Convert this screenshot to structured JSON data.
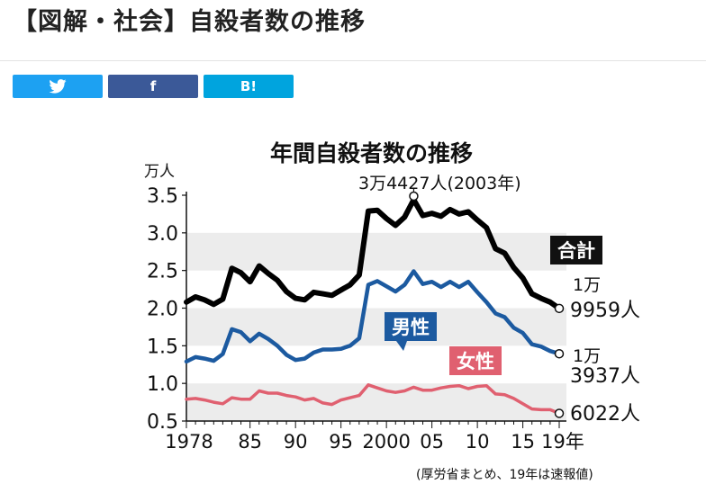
{
  "page": {
    "title": "【図解・社会】自殺者数の推移"
  },
  "share": {
    "twitter_icon": "twitter-bird-icon",
    "facebook_label": "f",
    "hatena_label": "B!",
    "colors": {
      "twitter": "#1da1f2",
      "facebook": "#3b5998",
      "hatena": "#00a4de"
    }
  },
  "chart_data": {
    "type": "line",
    "title": "年間自殺者数の推移",
    "ylabel": "万人",
    "ylim": [
      0.5,
      3.5
    ],
    "yticks": [
      0.5,
      1.0,
      1.5,
      2.0,
      2.5,
      3.0,
      3.5
    ],
    "ytick_labels": [
      "0.5",
      "1.0",
      "1.5",
      "2.0",
      "2.5",
      "3.0",
      "3.5"
    ],
    "xlim": [
      1978,
      2019
    ],
    "xticks": [
      1978,
      1985,
      1990,
      1995,
      2000,
      2005,
      2010,
      2015,
      2019
    ],
    "xtick_labels": [
      "1978",
      "85",
      "90",
      "95",
      "2000",
      "05",
      "10",
      "15",
      "19年"
    ],
    "grid": "alternating horizontal bands",
    "x": [
      1978,
      1979,
      1980,
      1981,
      1982,
      1983,
      1984,
      1985,
      1986,
      1987,
      1988,
      1989,
      1990,
      1991,
      1992,
      1993,
      1994,
      1995,
      1996,
      1997,
      1998,
      1999,
      2000,
      2001,
      2002,
      2003,
      2004,
      2005,
      2006,
      2007,
      2008,
      2009,
      2010,
      2011,
      2012,
      2013,
      2014,
      2015,
      2016,
      2017,
      2018,
      2019
    ],
    "series": [
      {
        "name": "合計",
        "color": "#000000",
        "values": [
          2.08,
          2.15,
          2.11,
          2.05,
          2.12,
          2.53,
          2.47,
          2.35,
          2.56,
          2.46,
          2.37,
          2.22,
          2.13,
          2.11,
          2.21,
          2.19,
          2.17,
          2.24,
          2.31,
          2.44,
          3.29,
          3.3,
          3.19,
          3.1,
          3.21,
          3.44,
          3.23,
          3.26,
          3.22,
          3.31,
          3.25,
          3.28,
          3.17,
          3.07,
          2.79,
          2.73,
          2.54,
          2.4,
          2.19,
          2.13,
          2.08,
          1.996
        ]
      },
      {
        "name": "男性",
        "color": "#1c5aa0",
        "values": [
          1.29,
          1.35,
          1.33,
          1.3,
          1.39,
          1.72,
          1.68,
          1.56,
          1.66,
          1.59,
          1.5,
          1.38,
          1.31,
          1.33,
          1.41,
          1.45,
          1.45,
          1.46,
          1.5,
          1.6,
          2.31,
          2.36,
          2.29,
          2.22,
          2.31,
          2.49,
          2.32,
          2.35,
          2.28,
          2.35,
          2.28,
          2.35,
          2.21,
          2.08,
          1.93,
          1.88,
          1.74,
          1.67,
          1.52,
          1.49,
          1.43,
          1.394
        ]
      },
      {
        "name": "女性",
        "color": "#e06070",
        "values": [
          0.79,
          0.8,
          0.78,
          0.75,
          0.73,
          0.81,
          0.79,
          0.79,
          0.9,
          0.87,
          0.87,
          0.84,
          0.82,
          0.78,
          0.8,
          0.74,
          0.72,
          0.78,
          0.81,
          0.84,
          0.98,
          0.94,
          0.9,
          0.88,
          0.9,
          0.95,
          0.91,
          0.91,
          0.94,
          0.96,
          0.97,
          0.93,
          0.96,
          0.97,
          0.86,
          0.85,
          0.8,
          0.73,
          0.66,
          0.65,
          0.65,
          0.602
        ]
      }
    ],
    "annotations": {
      "peak": {
        "text": "3万4427人(2003年)",
        "x": 2003,
        "y": 3.44
      },
      "total_end": {
        "line1": "1万",
        "line2": "9959人"
      },
      "male_end": {
        "line1": "1万",
        "line2": "3937人"
      },
      "female_end": {
        "line1": "6022人"
      }
    },
    "source": "(厚労省まとめ、19年は速報値)"
  }
}
